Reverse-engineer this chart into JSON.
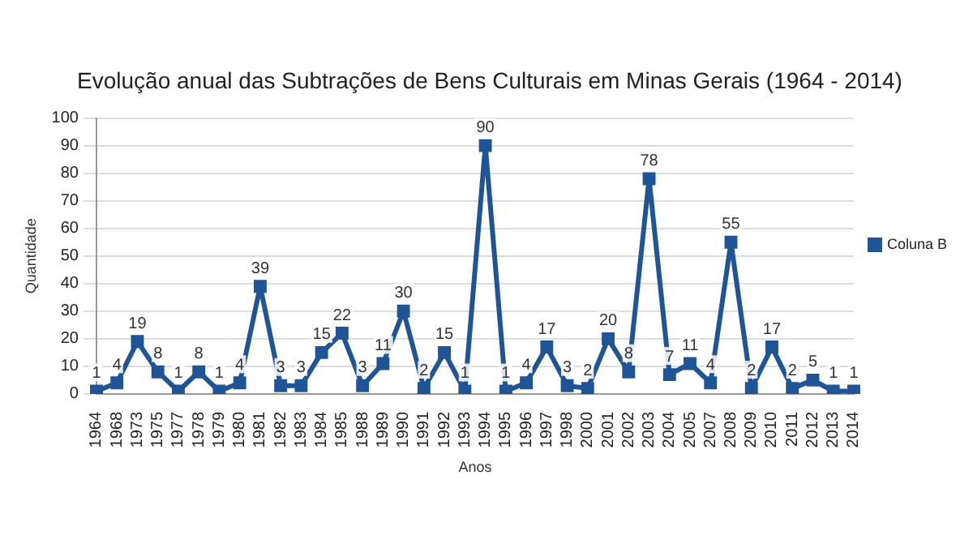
{
  "chart_data": {
    "type": "line",
    "title": "Evolução anual das Subtrações de Bens Culturais em Minas Gerais (1964 - 2014)",
    "xlabel": "Anos",
    "ylabel": "Quantidade",
    "categories": [
      "1964",
      "1968",
      "1973",
      "1975",
      "1977",
      "1978",
      "1979",
      "1980",
      "1981",
      "1982",
      "1983",
      "1984",
      "1985",
      "1988",
      "1989",
      "1990",
      "1991",
      "1992",
      "1993",
      "1994",
      "1995",
      "1996",
      "1997",
      "1998",
      "2000",
      "2001",
      "2002",
      "2003",
      "2004",
      "2005",
      "2007",
      "2008",
      "2009",
      "2010",
      "2011",
      "2012",
      "2013",
      "2014"
    ],
    "series": [
      {
        "name": "Coluna B",
        "color": "#1f5597",
        "values": [
          1,
          4,
          19,
          8,
          1,
          8,
          1,
          4,
          39,
          3,
          3,
          15,
          22,
          3,
          11,
          30,
          2,
          15,
          1,
          90,
          1,
          4,
          17,
          3,
          2,
          20,
          8,
          78,
          7,
          11,
          4,
          55,
          2,
          17,
          2,
          5,
          1,
          1
        ]
      }
    ],
    "ylim": [
      0,
      100
    ],
    "yticks": [
      0,
      10,
      20,
      30,
      40,
      50,
      60,
      70,
      80,
      90,
      100
    ],
    "grid": "y",
    "legend": "right",
    "marker": "square",
    "line_style": "solid",
    "data_labels": true
  }
}
